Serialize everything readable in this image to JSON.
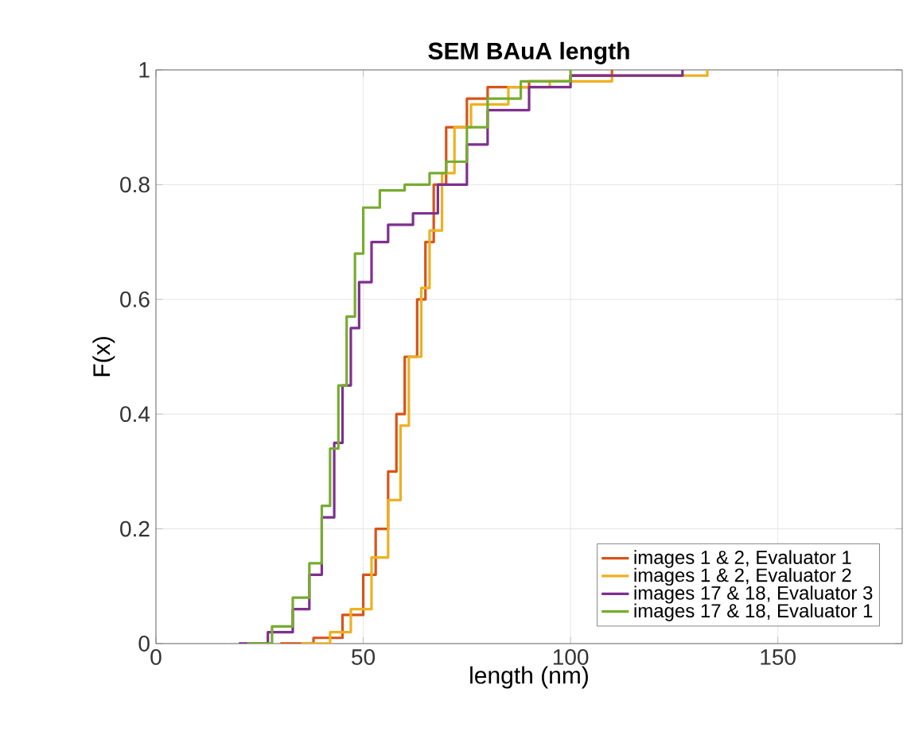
{
  "chart_data": {
    "type": "step",
    "title": "SEM BAuA length",
    "xlabel": "length (nm)",
    "ylabel": "F(x)",
    "xlim": [
      0,
      180
    ],
    "ylim": [
      0,
      1
    ],
    "xticks": [
      0,
      50,
      100,
      150
    ],
    "yticks": [
      0,
      0.2,
      0.4,
      0.6,
      0.8,
      1
    ],
    "grid": true,
    "legend": "bottom right",
    "series": [
      {
        "name": "images 1 & 2, Evaluator 1",
        "color": "#d95319",
        "x": [
          30,
          38,
          45,
          50,
          53,
          56,
          58,
          60,
          63,
          65,
          67,
          70,
          75,
          80,
          90,
          100,
          110
        ],
        "values": [
          0,
          0.01,
          0.05,
          0.12,
          0.2,
          0.3,
          0.4,
          0.5,
          0.6,
          0.7,
          0.8,
          0.9,
          0.95,
          0.97,
          0.98,
          0.99,
          1
        ]
      },
      {
        "name": "images 1 & 2, Evaluator 2",
        "color": "#edb120",
        "x": [
          35,
          42,
          47,
          52,
          56,
          59,
          61,
          64,
          66,
          69,
          72,
          76,
          85,
          95,
          110,
          133
        ],
        "values": [
          0,
          0.02,
          0.06,
          0.15,
          0.25,
          0.38,
          0.5,
          0.62,
          0.72,
          0.82,
          0.9,
          0.94,
          0.97,
          0.98,
          0.99,
          1
        ]
      },
      {
        "name": "images 17 & 18, Evaluator 3",
        "color": "#7e2f8e",
        "x": [
          20,
          27,
          33,
          37,
          40,
          43,
          45,
          47,
          49,
          52,
          56,
          62,
          68,
          75,
          80,
          90,
          100,
          127
        ],
        "values": [
          0,
          0.02,
          0.06,
          0.12,
          0.22,
          0.35,
          0.45,
          0.55,
          0.63,
          0.7,
          0.73,
          0.75,
          0.8,
          0.87,
          0.93,
          0.97,
          0.99,
          1
        ]
      },
      {
        "name": "images 17 & 18, Evaluator 1",
        "color": "#77ac30",
        "x": [
          22,
          28,
          33,
          37,
          40,
          42,
          44,
          46,
          48,
          50,
          54,
          60,
          66,
          70,
          75,
          80,
          88,
          100
        ],
        "values": [
          0,
          0.03,
          0.08,
          0.14,
          0.24,
          0.34,
          0.45,
          0.57,
          0.68,
          0.76,
          0.79,
          0.8,
          0.82,
          0.84,
          0.9,
          0.95,
          0.98,
          1
        ]
      }
    ]
  }
}
